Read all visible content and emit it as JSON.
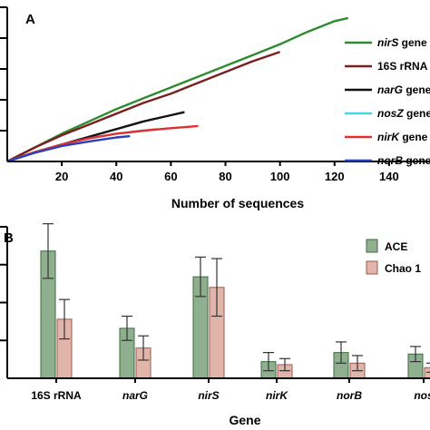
{
  "chart_data": [
    {
      "type": "line",
      "panel": "A",
      "title": "",
      "xlabel": "Number of sequences",
      "ylabel": "",
      "xlim": [
        0,
        155
      ],
      "xticks": [
        20,
        40,
        60,
        80,
        100,
        120,
        140
      ],
      "ylim": [
        0,
        5
      ],
      "legend_position": "top-right",
      "series": [
        {
          "name": "nirS",
          "suffix": " gene",
          "italic": true,
          "color": "#2e8b2e",
          "x": [
            0,
            10,
            20,
            30,
            40,
            50,
            60,
            70,
            80,
            90,
            100,
            110,
            120,
            125
          ],
          "y": [
            0,
            0.45,
            0.9,
            1.3,
            1.7,
            2.05,
            2.4,
            2.75,
            3.1,
            3.45,
            3.8,
            4.2,
            4.55,
            4.65
          ]
        },
        {
          "name": "16S rRNA",
          "suffix": "",
          "italic": false,
          "color": "#7a1f1f",
          "x": [
            0,
            10,
            20,
            30,
            40,
            50,
            60,
            70,
            80,
            90,
            100
          ],
          "y": [
            0,
            0.45,
            0.85,
            1.2,
            1.55,
            1.9,
            2.2,
            2.55,
            2.9,
            3.25,
            3.55
          ]
        },
        {
          "name": "narG",
          "suffix": " gene",
          "italic": true,
          "color": "#111111",
          "x": [
            0,
            10,
            20,
            30,
            40,
            50,
            60,
            65
          ],
          "y": [
            0,
            0.3,
            0.55,
            0.8,
            1.05,
            1.3,
            1.5,
            1.6
          ]
        },
        {
          "name": "nosZ",
          "suffix": " gene",
          "italic": true,
          "color": "#45d4e6",
          "x": [
            0,
            10,
            20,
            30,
            40,
            50,
            55
          ],
          "y": [
            0,
            0.3,
            0.55,
            0.75,
            0.9,
            1.0,
            1.05
          ]
        },
        {
          "name": "nirK",
          "suffix": " gene",
          "italic": true,
          "color": "#e03030",
          "x": [
            0,
            10,
            20,
            30,
            40,
            50,
            60,
            70
          ],
          "y": [
            0,
            0.3,
            0.55,
            0.75,
            0.9,
            1.0,
            1.08,
            1.15
          ]
        },
        {
          "name": "norB",
          "suffix": " gene",
          "italic": true,
          "color": "#2a3fbf",
          "x": [
            0,
            10,
            20,
            30,
            40,
            45
          ],
          "y": [
            0,
            0.28,
            0.5,
            0.65,
            0.78,
            0.82
          ]
        }
      ]
    },
    {
      "type": "bar",
      "panel": "B",
      "title": "",
      "xlabel": "Gene",
      "ylabel": "",
      "ylim": [
        0,
        100
      ],
      "legend_position": "top-right",
      "categories": [
        {
          "label": "16S rRNA",
          "italic": false
        },
        {
          "label": "narG",
          "italic": true
        },
        {
          "label": "nirS",
          "italic": true
        },
        {
          "label": "nirK",
          "italic": true
        },
        {
          "label": "norB",
          "italic": true
        },
        {
          "label": "nos",
          "italic": true
        }
      ],
      "series": [
        {
          "name": "ACE",
          "color": "#8fb08f",
          "edge": "#3f6a3f",
          "values": [
            84,
            33,
            67,
            11,
            17,
            16
          ],
          "errors": [
            18,
            8,
            13,
            6,
            7,
            5
          ]
        },
        {
          "name": "Chao 1",
          "color": "#e2b5ab",
          "edge": "#9a5a52",
          "values": [
            39,
            20,
            60,
            9,
            10,
            7
          ],
          "errors": [
            13,
            8,
            19,
            4,
            5,
            3
          ]
        }
      ]
    }
  ]
}
